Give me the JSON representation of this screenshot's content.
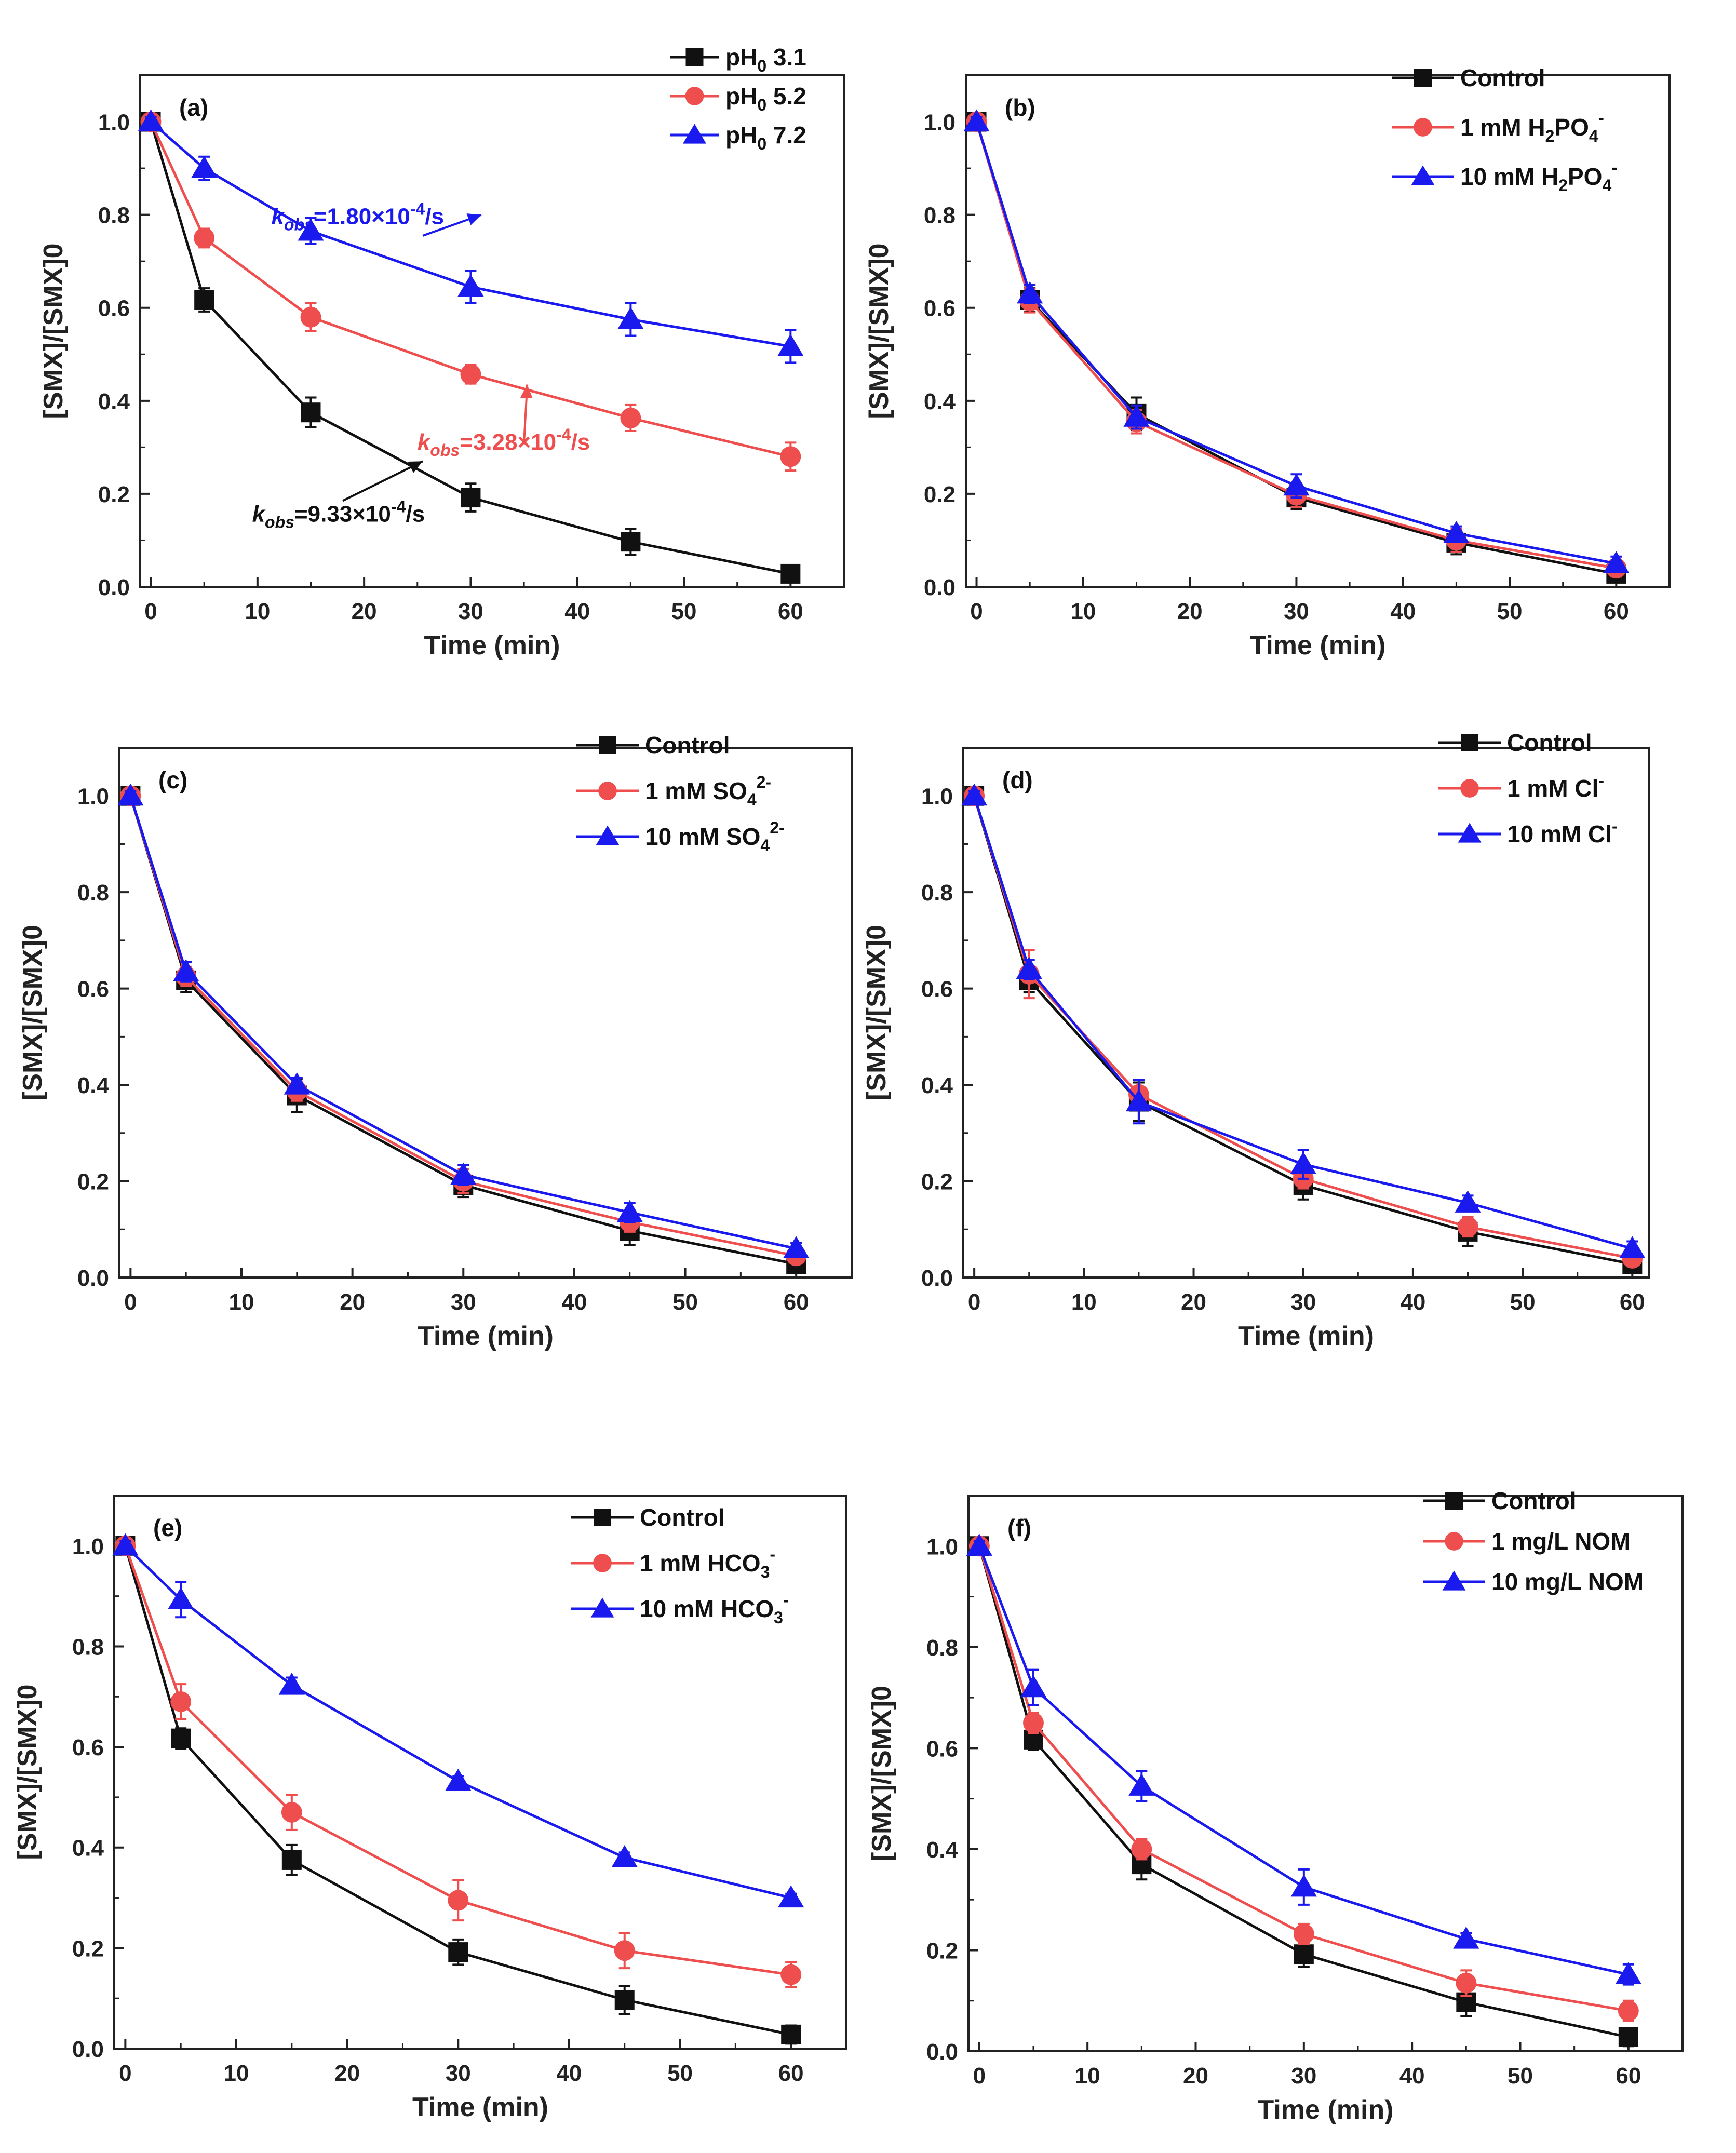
{
  "colors": {
    "black": "#111111",
    "red": "#ef4e4e",
    "blue": "#1a1aee",
    "axis": "#222222"
  },
  "axis_common": {
    "x_ticks": [
      "0",
      "10",
      "20",
      "30",
      "40",
      "50",
      "60"
    ],
    "y_ticks": [
      "0.0",
      "0.2",
      "0.4",
      "0.6",
      "0.8",
      "1.0"
    ]
  },
  "chart_data": [
    {
      "type": "line",
      "panel_label": "(a)",
      "xlabel": "Time (min)",
      "ylabel": "[SMX]/[SMX]0",
      "xlim": [
        -1,
        65
      ],
      "ylim": [
        0,
        1.1
      ],
      "x": [
        0,
        5,
        15,
        30,
        45,
        60
      ],
      "series": [
        {
          "name_parts": [
            "pH",
            "0",
            " 3.1"
          ],
          "name_style": "ph",
          "color": "black",
          "marker": "square",
          "values": [
            1.0,
            0.617,
            0.375,
            0.192,
            0.097,
            0.028
          ],
          "errors": [
            0.01,
            0.025,
            0.032,
            0.03,
            0.028,
            0.018
          ]
        },
        {
          "name_parts": [
            "pH",
            "0",
            " 5.2"
          ],
          "name_style": "ph",
          "color": "red",
          "marker": "circle",
          "values": [
            1.0,
            0.75,
            0.58,
            0.457,
            0.363,
            0.28
          ],
          "errors": [
            0.01,
            0.02,
            0.03,
            0.02,
            0.028,
            0.03
          ]
        },
        {
          "name_parts": [
            "pH",
            "0",
            " 7.2"
          ],
          "name_style": "ph",
          "color": "blue",
          "marker": "triangle",
          "values": [
            1.0,
            0.9,
            0.765,
            0.645,
            0.575,
            0.517
          ],
          "errors": [
            0.01,
            0.025,
            0.028,
            0.035,
            0.035,
            0.035
          ]
        }
      ],
      "annotations": [
        {
          "prefix": "k",
          "sub": "obs",
          "text": "=1.80×10",
          "sup": "-4",
          "suffix": "/s",
          "color": "blue",
          "text_pos": [
            11.3,
            0.78
          ],
          "arrow_from": [
            25.5,
            0.755
          ],
          "arrow_to": [
            31,
            0.8
          ]
        },
        {
          "prefix": "k",
          "sub": "obs",
          "text": "=3.28×10",
          "sup": "-4",
          "suffix": "/s",
          "color": "red",
          "text_pos": [
            25,
            0.295
          ],
          "arrow_from": [
            35,
            0.31
          ],
          "arrow_to": [
            35.3,
            0.435
          ]
        },
        {
          "prefix": "k",
          "sub": "obs",
          "text": "=9.33×10",
          "sup": "-4",
          "suffix": "/s",
          "color": "black",
          "text_pos": [
            9.5,
            0.14
          ],
          "arrow_from": [
            18,
            0.185
          ],
          "arrow_to": [
            25.5,
            0.27
          ]
        }
      ]
    },
    {
      "type": "line",
      "panel_label": "(b)",
      "xlabel": "Time (min)",
      "ylabel": "[SMX]/[SMX]0",
      "xlim": [
        -1,
        65
      ],
      "ylim": [
        0,
        1.1
      ],
      "x": [
        0,
        5,
        15,
        30,
        45,
        60
      ],
      "series": [
        {
          "name_parts": [
            "Control"
          ],
          "name_style": "plain",
          "color": "black",
          "marker": "square",
          "values": [
            1.0,
            0.617,
            0.372,
            0.192,
            0.095,
            0.028
          ],
          "errors": [
            0.01,
            0.025,
            0.035,
            0.025,
            0.025,
            0.018
          ]
        },
        {
          "name_parts": [
            "1 mM H",
            "2",
            "PO",
            "4",
            "-"
          ],
          "name_style": "h2po4",
          "color": "red",
          "marker": "circle",
          "values": [
            1.0,
            0.615,
            0.355,
            0.197,
            0.1,
            0.04
          ],
          "errors": [
            0.01,
            0.025,
            0.025,
            0.025,
            0.025,
            0.018
          ]
        },
        {
          "name_parts": [
            "10 mM H",
            "2",
            "PO",
            "4",
            "-"
          ],
          "name_style": "h2po4",
          "color": "blue",
          "marker": "triangle",
          "values": [
            1.0,
            0.63,
            0.365,
            0.217,
            0.115,
            0.05
          ],
          "errors": [
            0.01,
            0.02,
            0.025,
            0.025,
            0.015,
            0.015
          ]
        }
      ]
    },
    {
      "type": "line",
      "panel_label": "(c)",
      "xlabel": "Time (min)",
      "ylabel": "[SMX]/[SMX]0",
      "xlim": [
        -1,
        65
      ],
      "ylim": [
        0,
        1.1
      ],
      "x": [
        0,
        5,
        15,
        30,
        45,
        60
      ],
      "series": [
        {
          "name_parts": [
            "Control"
          ],
          "name_style": "plain",
          "color": "black",
          "marker": "square",
          "values": [
            1.0,
            0.617,
            0.378,
            0.192,
            0.097,
            0.028
          ],
          "errors": [
            0.01,
            0.025,
            0.035,
            0.025,
            0.03,
            0.018
          ]
        },
        {
          "name_parts": [
            "1 mM SO",
            "4",
            "2-"
          ],
          "name_style": "so4",
          "color": "red",
          "marker": "circle",
          "values": [
            1.0,
            0.625,
            0.387,
            0.2,
            0.115,
            0.045
          ],
          "errors": [
            0.01,
            0.02,
            0.02,
            0.025,
            0.02,
            0.015
          ]
        },
        {
          "name_parts": [
            "10 mM SO",
            "4",
            "2-"
          ],
          "name_style": "so4",
          "color": "blue",
          "marker": "triangle",
          "values": [
            1.0,
            0.635,
            0.4,
            0.213,
            0.135,
            0.06
          ],
          "errors": [
            0.01,
            0.02,
            0.015,
            0.02,
            0.02,
            0.012
          ]
        }
      ]
    },
    {
      "type": "line",
      "panel_label": "(d)",
      "xlabel": "Time (min)",
      "ylabel": "[SMX]/[SMX]0",
      "xlim": [
        -1,
        61.5
      ],
      "ylim": [
        0,
        1.1
      ],
      "x": [
        0,
        5,
        15,
        30,
        45,
        60
      ],
      "series": [
        {
          "name_parts": [
            "Control"
          ],
          "name_style": "plain",
          "color": "black",
          "marker": "square",
          "values": [
            1.0,
            0.617,
            0.365,
            0.192,
            0.095,
            0.028
          ],
          "errors": [
            0.01,
            0.025,
            0.04,
            0.03,
            0.03,
            0.018
          ]
        },
        {
          "name_parts": [
            "1 mM Cl",
            "-"
          ],
          "name_style": "cl",
          "color": "red",
          "marker": "circle",
          "values": [
            1.0,
            0.63,
            0.38,
            0.205,
            0.105,
            0.04
          ],
          "errors": [
            0.01,
            0.05,
            0.03,
            0.02,
            0.02,
            0.012
          ]
        },
        {
          "name_parts": [
            " 10 mM Cl",
            "-"
          ],
          "name_style": "cl",
          "color": "blue",
          "marker": "triangle",
          "values": [
            1.0,
            0.64,
            0.365,
            0.235,
            0.155,
            0.06
          ],
          "errors": [
            0.01,
            0.02,
            0.045,
            0.03,
            0.015,
            0.015
          ]
        }
      ]
    },
    {
      "type": "line",
      "panel_label": "(e)",
      "xlabel": "Time (min)",
      "ylabel": "[SMX]/[SMX]0",
      "xlim": [
        -1,
        65
      ],
      "ylim": [
        0,
        1.1
      ],
      "x": [
        0,
        5,
        15,
        30,
        45,
        60
      ],
      "series": [
        {
          "name_parts": [
            "Control"
          ],
          "name_style": "plain",
          "color": "black",
          "marker": "square",
          "values": [
            1.0,
            0.617,
            0.375,
            0.192,
            0.097,
            0.028
          ],
          "errors": [
            0.01,
            0.02,
            0.03,
            0.025,
            0.028,
            0.018
          ]
        },
        {
          "name_parts": [
            "1 mM HCO",
            "3",
            "-"
          ],
          "name_style": "hco3",
          "color": "red",
          "marker": "circle",
          "values": [
            1.0,
            0.69,
            0.47,
            0.295,
            0.195,
            0.147
          ],
          "errors": [
            0.01,
            0.035,
            0.035,
            0.04,
            0.035,
            0.025
          ]
        },
        {
          "name_parts": [
            "10 mM HCO",
            "3",
            "-"
          ],
          "name_style": "hco3",
          "color": "blue",
          "marker": "triangle",
          "values": [
            1.0,
            0.893,
            0.723,
            0.532,
            0.38,
            0.3
          ],
          "errors": [
            0.01,
            0.035,
            0.015,
            0.01,
            0.01,
            0.008
          ]
        }
      ]
    },
    {
      "type": "line",
      "panel_label": "(f)",
      "xlabel": "Time (min)",
      "ylabel": "[SMX]/[SMX]0",
      "xlim": [
        -1,
        65
      ],
      "ylim": [
        0,
        1.1
      ],
      "x": [
        0,
        5,
        15,
        30,
        45,
        60
      ],
      "series": [
        {
          "name_parts": [
            "Control"
          ],
          "name_style": "plain",
          "color": "black",
          "marker": "square",
          "values": [
            1.0,
            0.617,
            0.37,
            0.192,
            0.097,
            0.028
          ],
          "errors": [
            0.01,
            0.02,
            0.03,
            0.025,
            0.028,
            0.018
          ]
        },
        {
          "name_parts": [
            "1 mg/L NOM"
          ],
          "name_style": "plain",
          "color": "red",
          "marker": "circle",
          "values": [
            1.0,
            0.65,
            0.4,
            0.232,
            0.135,
            0.08
          ],
          "errors": [
            0.01,
            0.02,
            0.02,
            0.02,
            0.025,
            0.02
          ]
        },
        {
          "name_parts": [
            "10 mg/L NOM"
          ],
          "name_style": "plain",
          "color": "blue",
          "marker": "triangle",
          "values": [
            1.0,
            0.72,
            0.525,
            0.325,
            0.222,
            0.152
          ],
          "errors": [
            0.01,
            0.035,
            0.03,
            0.035,
            0.012,
            0.02
          ]
        }
      ]
    }
  ]
}
